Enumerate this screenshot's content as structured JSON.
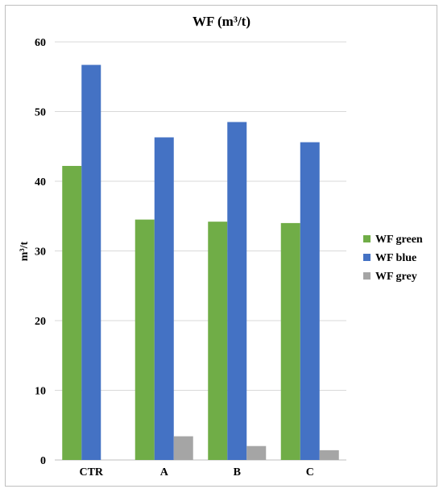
{
  "chart_data": {
    "type": "bar",
    "title": "WF (m³/t)",
    "ylabel": "m³/t",
    "xlabel": "",
    "categories": [
      "CTR",
      "A",
      "B",
      "C"
    ],
    "yticks": [
      "0",
      "10",
      "20",
      "30",
      "40",
      "50",
      "60"
    ],
    "ylim": [
      0,
      60
    ],
    "grid": true,
    "legend_position": "right",
    "series": [
      {
        "name": "WF green",
        "color": "#70ad47",
        "values": [
          42.2,
          34.5,
          34.2,
          34.0
        ]
      },
      {
        "name": "WF blue",
        "color": "#4472c4",
        "values": [
          56.7,
          46.3,
          48.5,
          45.6
        ]
      },
      {
        "name": "WF grey",
        "color": "#a5a5a5",
        "values": [
          0.0,
          3.4,
          2.0,
          1.4
        ]
      }
    ]
  }
}
